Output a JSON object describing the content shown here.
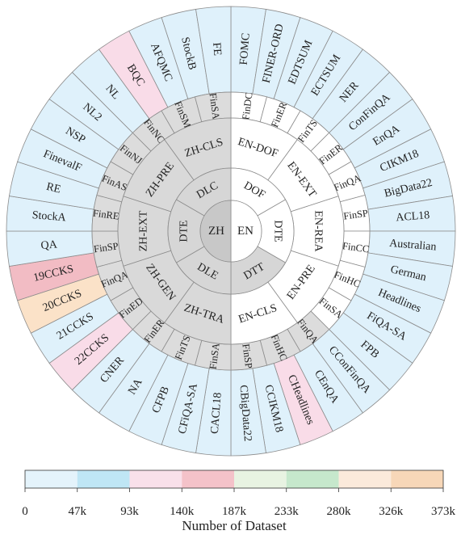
{
  "center": [
    {
      "label": "EN",
      "fill": "#ffffff"
    },
    {
      "label": "ZH",
      "fill": "#c8c8c8"
    }
  ],
  "ring2": [
    {
      "label": "DOF",
      "fill": "#ffffff"
    },
    {
      "label": "DTE",
      "fill": "#ffffff"
    },
    {
      "label": "DTT",
      "fill": "#d6d6d6"
    },
    {
      "label": "DLE",
      "fill": "#d6d6d6"
    },
    {
      "label": "DTE",
      "fill": "#d6d6d6"
    },
    {
      "label": "DLC",
      "fill": "#d6d6d6"
    }
  ],
  "ring3": [
    {
      "label": "EN-DOF",
      "fill": "#ffffff"
    },
    {
      "label": "EN-EXT",
      "fill": "#ffffff"
    },
    {
      "label": "EN-REA",
      "fill": "#ffffff"
    },
    {
      "label": "EN-PRE",
      "fill": "#ffffff"
    },
    {
      "label": "EN-CLS",
      "fill": "#ffffff"
    },
    {
      "label": "ZH-TRA",
      "fill": "#d9d9d9"
    },
    {
      "label": "ZH-GEN",
      "fill": "#d9d9d9"
    },
    {
      "label": "ZH-EXT",
      "fill": "#d9d9d9"
    },
    {
      "label": "ZH-PRE",
      "fill": "#d9d9d9"
    },
    {
      "label": "ZH-CLS",
      "fill": "#d9d9d9"
    }
  ],
  "ring4": [
    {
      "label": "FinDC",
      "fill": "#ffffff"
    },
    {
      "label": "FinER",
      "fill": "#ffffff"
    },
    {
      "label": "FinTS",
      "fill": "#ffffff"
    },
    {
      "label": "FinER",
      "fill": "#ffffff"
    },
    {
      "label": "FinQA",
      "fill": "#ffffff"
    },
    {
      "label": "FinSP",
      "fill": "#ffffff"
    },
    {
      "label": "FinCC",
      "fill": "#ffffff"
    },
    {
      "label": "FinHC",
      "fill": "#ffffff"
    },
    {
      "label": "FinSA",
      "fill": "#ffffff"
    },
    {
      "label": "FinQA",
      "fill": "#dcdcdc"
    },
    {
      "label": "FinHC",
      "fill": "#dcdcdc"
    },
    {
      "label": "FinSP",
      "fill": "#dcdcdc"
    },
    {
      "label": "FinSA",
      "fill": "#dcdcdc"
    },
    {
      "label": "FinTS",
      "fill": "#dcdcdc"
    },
    {
      "label": "FinER",
      "fill": "#dcdcdc"
    },
    {
      "label": "FinED",
      "fill": "#dcdcdc"
    },
    {
      "label": "FinQA",
      "fill": "#dcdcdc"
    },
    {
      "label": "FinSP",
      "fill": "#dcdcdc"
    },
    {
      "label": "FinRE",
      "fill": "#dcdcdc"
    },
    {
      "label": "FinAS",
      "fill": "#dcdcdc"
    },
    {
      "label": "FinNJ",
      "fill": "#dcdcdc"
    },
    {
      "label": "FinNC",
      "fill": "#dcdcdc"
    },
    {
      "label": "FinSM",
      "fill": "#dcdcdc"
    },
    {
      "label": "FinSA",
      "fill": "#dcdcdc"
    }
  ],
  "ring5": [
    {
      "label": "FOMC",
      "fill": "#dff1fb"
    },
    {
      "label": "FINER-ORD",
      "fill": "#dff1fb"
    },
    {
      "label": "EDTSUM",
      "fill": "#dff1fb"
    },
    {
      "label": "ECTSUM",
      "fill": "#dff1fb"
    },
    {
      "label": "NER",
      "fill": "#dff1fb"
    },
    {
      "label": "ConFinQA",
      "fill": "#dff1fb"
    },
    {
      "label": "EnQA",
      "fill": "#dff1fb"
    },
    {
      "label": "CIKM18",
      "fill": "#dff1fb"
    },
    {
      "label": "BigData22",
      "fill": "#dff1fb"
    },
    {
      "label": "ACL18",
      "fill": "#dff1fb"
    },
    {
      "label": "Australian",
      "fill": "#dff1fb"
    },
    {
      "label": "German",
      "fill": "#dff1fb"
    },
    {
      "label": "Headlines",
      "fill": "#dff1fb"
    },
    {
      "label": "FiQA-SA",
      "fill": "#dff1fb"
    },
    {
      "label": "FPB",
      "fill": "#dff1fb"
    },
    {
      "label": "CConFinQA",
      "fill": "#dff1fb"
    },
    {
      "label": "CEnQA",
      "fill": "#dff1fb"
    },
    {
      "label": "CHeadlines",
      "fill": "#f9dce8"
    },
    {
      "label": "CCIKM18",
      "fill": "#dff1fb"
    },
    {
      "label": "CBigData22",
      "fill": "#dff1fb"
    },
    {
      "label": "CACL18",
      "fill": "#dff1fb"
    },
    {
      "label": "CFiQA-SA",
      "fill": "#dff1fb"
    },
    {
      "label": "CFPB",
      "fill": "#dff1fb"
    },
    {
      "label": "NA",
      "fill": "#dff1fb"
    },
    {
      "label": "CNER",
      "fill": "#dff1fb"
    },
    {
      "label": "22CCKS",
      "fill": "#f9dce8"
    },
    {
      "label": "21CCKS",
      "fill": "#dff1fb"
    },
    {
      "label": "20CCKS",
      "fill": "#fbe2c8"
    },
    {
      "label": "19CCKS",
      "fill": "#f2bcc4"
    },
    {
      "label": "QA",
      "fill": "#dff1fb"
    },
    {
      "label": "StockA",
      "fill": "#dff1fb"
    },
    {
      "label": "RE",
      "fill": "#dff1fb"
    },
    {
      "label": "FinevalF",
      "fill": "#dff1fb"
    },
    {
      "label": "NSP",
      "fill": "#dff1fb"
    },
    {
      "label": "NL2",
      "fill": "#dff1fb"
    },
    {
      "label": "NL",
      "fill": "#dff1fb"
    },
    {
      "label": "BQC",
      "fill": "#f9dce8"
    },
    {
      "label": "AFQMC",
      "fill": "#dff1fb"
    },
    {
      "label": "StockB",
      "fill": "#dff1fb"
    },
    {
      "label": "FE",
      "fill": "#dff1fb"
    }
  ],
  "colorbar": {
    "title": "Number of Dataset",
    "ticks": [
      "0",
      "47k",
      "93k",
      "140k",
      "187k",
      "233k",
      "280k",
      "326k",
      "373k"
    ],
    "colors": [
      "#e4f3fb",
      "#bfe6f5",
      "#f9e0ea",
      "#f4c2c9",
      "#e8f3e2",
      "#c6e8cc",
      "#fbeadb",
      "#f7d7b8"
    ]
  }
}
